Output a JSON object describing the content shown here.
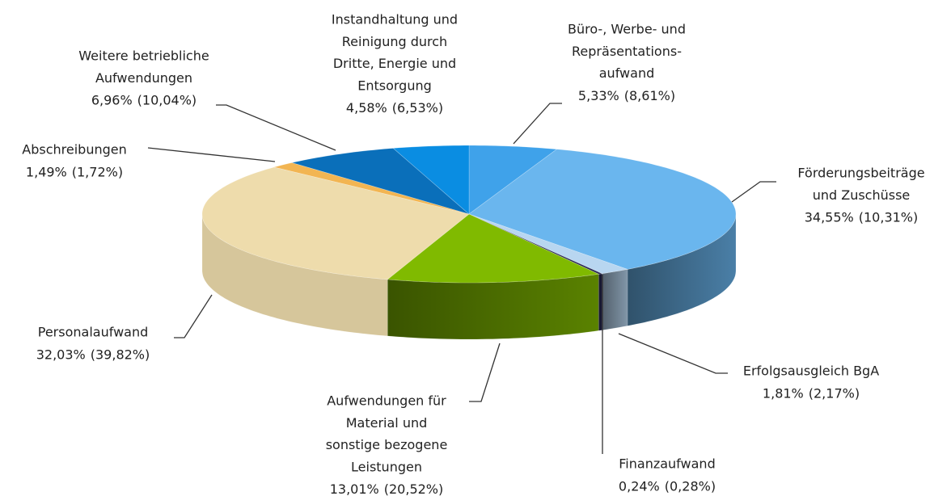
{
  "chart_data": {
    "type": "pie3d",
    "categories": [
      [
        "Büro-, Werbe- und",
        "Repräsentations-",
        "aufwand"
      ],
      [
        "Förderungsbeiträge",
        "und Zuschüsse"
      ],
      [
        "Erfolgsausgleich BgA"
      ],
      [
        "Finanzaufwand"
      ],
      [
        "Aufwendungen für",
        "Material und",
        "sonstige bezogene",
        "Leistungen"
      ],
      [
        "Personalaufwand"
      ],
      [
        "Abschreibungen"
      ],
      [
        "Weitere betriebliche",
        "Aufwendungen"
      ],
      [
        "Instandhaltung und",
        "Reinigung durch",
        "Dritte, Energie und",
        "Entsorgung"
      ]
    ],
    "values": [
      5.33,
      34.55,
      1.81,
      0.24,
      13.01,
      32.03,
      1.49,
      6.96,
      4.58
    ],
    "value_labels": [
      "5,33%",
      "34,55%",
      "1,81%",
      "0,24%",
      "13,01%",
      "32,03%",
      "1,49%",
      "6,96%",
      "4,58%"
    ],
    "prior_values": [
      8.61,
      10.31,
      2.17,
      0.28,
      20.52,
      39.82,
      1.72,
      10.04,
      6.53
    ],
    "prior_value_labels": [
      "(8,61%)",
      "(10,31%)",
      "(2,17%)",
      "(0,28%)",
      "(20,52%)",
      "(39,82%)",
      "(1,72%)",
      "(10,04%)",
      "(6,53%)"
    ],
    "colors": [
      "#3fa2ea",
      "#6ab6ee",
      "#b8d6f0",
      "#2a2a55",
      "#80ba00",
      "#eedcac",
      "#f2b552",
      "#0a6fba",
      "#0a8de2"
    ]
  }
}
